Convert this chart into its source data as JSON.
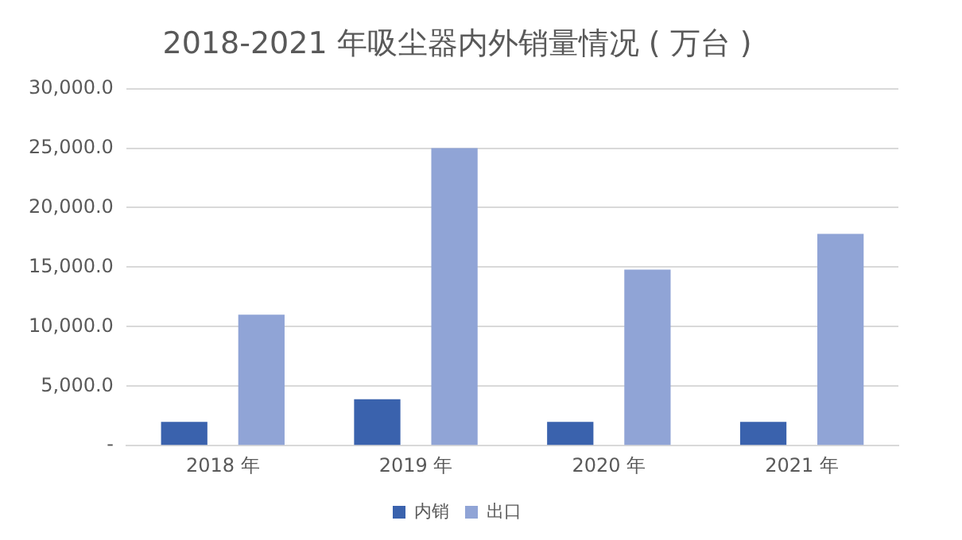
{
  "chart_data": {
    "type": "bar",
    "title": "2018-2021 年吸尘器内外销量情况 ( 万台 )",
    "categories": [
      "2018 年",
      "2019 年",
      "2020 年",
      "2021 年"
    ],
    "series": [
      {
        "name": "内销",
        "color": "#3a62ad",
        "values": [
          2000,
          3900,
          2000,
          2000
        ]
      },
      {
        "name": "出口",
        "color": "#90a4d6",
        "values": [
          11000,
          25000,
          14800,
          17800
        ]
      }
    ],
    "ylim": [
      0,
      30000
    ],
    "yticks": [
      {
        "value": 0,
        "label": "-"
      },
      {
        "value": 5000,
        "label": "5,000.0"
      },
      {
        "value": 10000,
        "label": "10,000.0"
      },
      {
        "value": 15000,
        "label": "15,000.0"
      },
      {
        "value": 20000,
        "label": "20,000.0"
      },
      {
        "value": 25000,
        "label": "25,000.0"
      },
      {
        "value": 30000,
        "label": "30,000.0"
      }
    ],
    "grid": "y",
    "legend": "bottom"
  }
}
